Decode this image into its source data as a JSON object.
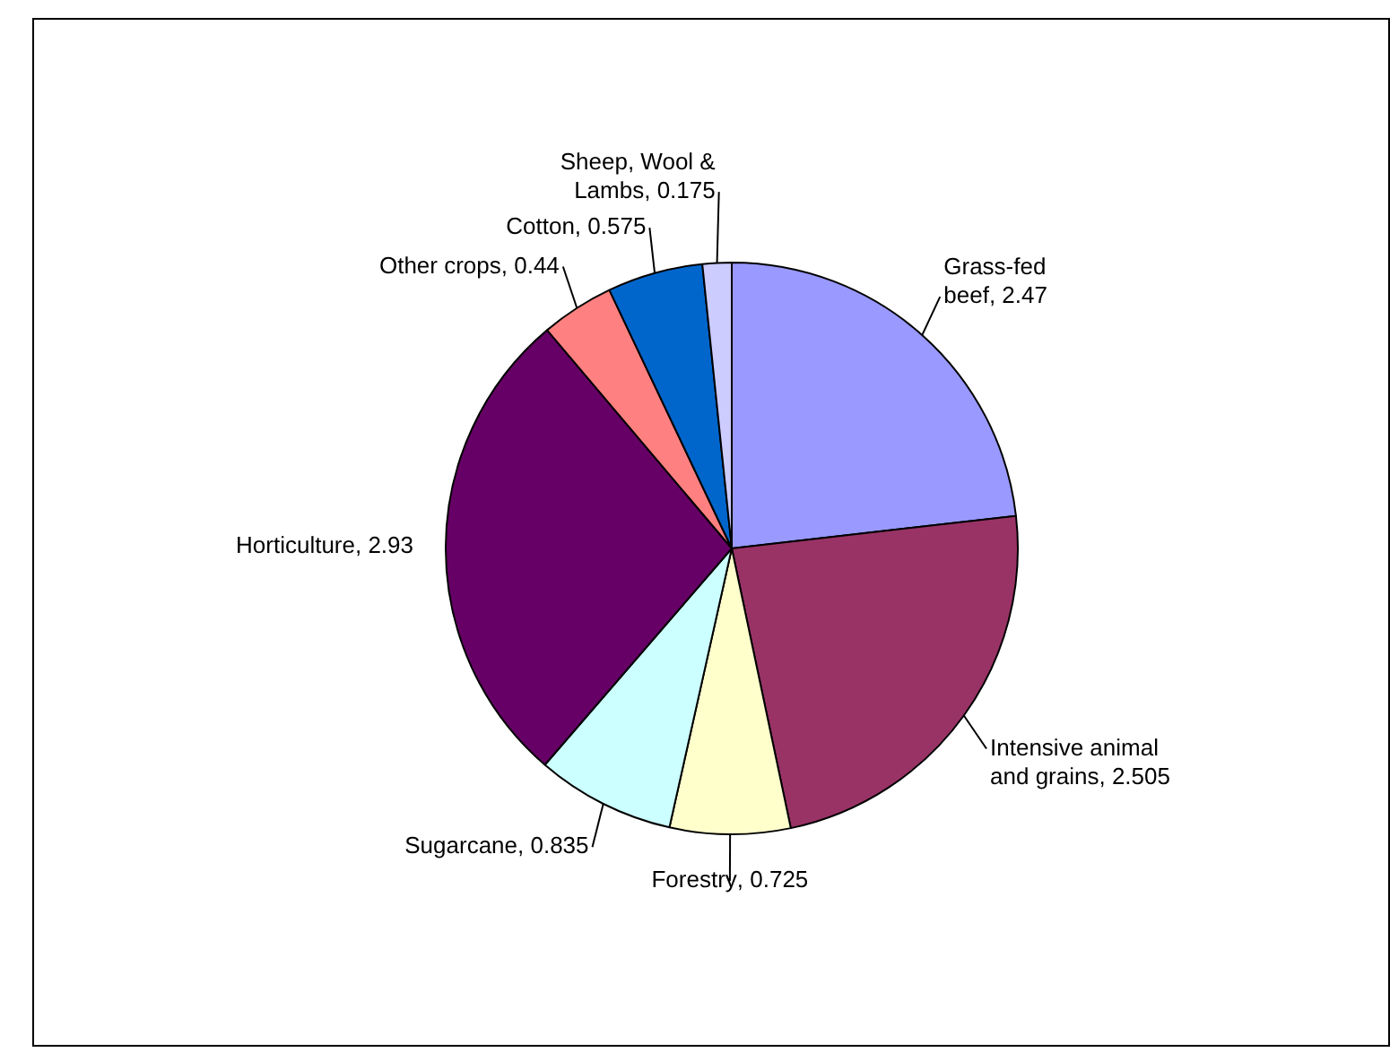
{
  "chart_data": {
    "type": "pie",
    "categories": [
      "Grass-fed beef",
      "Intensive animal and grains",
      "Forestry",
      "Sugarcane",
      "Horticulture",
      "Other crops",
      "Cotton",
      "Sheep, Wool & Lambs"
    ],
    "values": [
      2.47,
      2.505,
      0.725,
      0.835,
      2.93,
      0.44,
      0.575,
      0.175
    ],
    "value_labels": [
      ", 2.47",
      ", 2.505",
      ", 0.725",
      ", 0.835",
      ", 2.93",
      ", 0.44",
      ", 0.575",
      ", 0.175"
    ],
    "colors": [
      "#9999ff",
      "#993366",
      "#ffffcc",
      "#ccffff",
      "#660066",
      "#ff8080",
      "#0066cc",
      "#ccccff"
    ],
    "legend": false
  }
}
